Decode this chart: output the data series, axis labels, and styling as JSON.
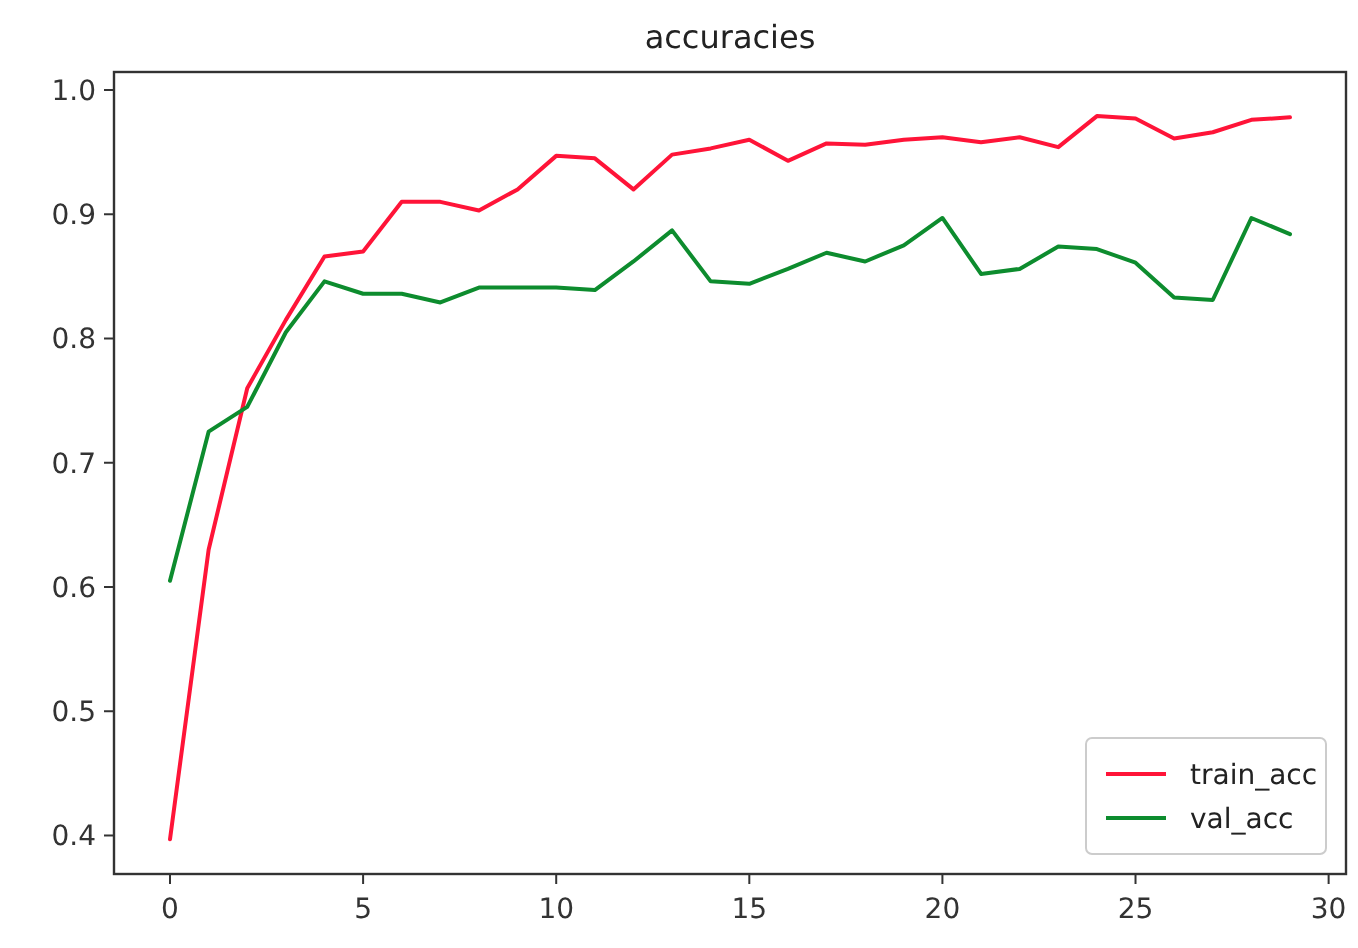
{
  "chart_data": {
    "type": "line",
    "title": "accuracies",
    "x": [
      0,
      1,
      2,
      3,
      4,
      5,
      6,
      7,
      8,
      9,
      10,
      11,
      12,
      13,
      14,
      15,
      16,
      17,
      18,
      19,
      20,
      21,
      22,
      23,
      24,
      25,
      26,
      27,
      28,
      29
    ],
    "series": [
      {
        "name": "train_acc",
        "color": "#ff1438",
        "values": [
          0.397,
          0.63,
          0.76,
          0.815,
          0.866,
          0.87,
          0.91,
          0.91,
          0.903,
          0.92,
          0.947,
          0.945,
          0.92,
          0.948,
          0.953,
          0.96,
          0.943,
          0.957,
          0.956,
          0.96,
          0.962,
          0.958,
          0.962,
          0.954,
          0.979,
          0.977,
          0.961,
          0.966,
          0.976,
          0.978
        ]
      },
      {
        "name": "val_acc",
        "color": "#0d8c2e",
        "values": [
          0.605,
          0.725,
          0.745,
          0.805,
          0.846,
          0.836,
          0.836,
          0.829,
          0.841,
          0.841,
          0.841,
          0.839,
          0.862,
          0.887,
          0.846,
          0.844,
          0.856,
          0.869,
          0.862,
          0.875,
          0.897,
          0.852,
          0.856,
          0.874,
          0.872,
          0.861,
          0.833,
          0.831,
          0.897,
          0.884
        ]
      }
    ],
    "xlim": [
      -1.45,
      30.45
    ],
    "xticks": [
      0,
      5,
      10,
      15,
      20,
      25,
      30
    ],
    "ylim": [
      0.369,
      1.0145
    ],
    "yticks": [
      {
        "value": 0.4,
        "label": "0.4"
      },
      {
        "value": 0.5,
        "label": "0.5"
      },
      {
        "value": 0.6,
        "label": "0.6"
      },
      {
        "value": 0.7,
        "label": "0.7"
      },
      {
        "value": 0.8,
        "label": "0.8"
      },
      {
        "value": 0.9,
        "label": "0.9"
      },
      {
        "value": 1,
        "label": "1.0"
      }
    ],
    "grid": false,
    "legend": "bottom right",
    "line_style": "solid",
    "marker": "none"
  }
}
